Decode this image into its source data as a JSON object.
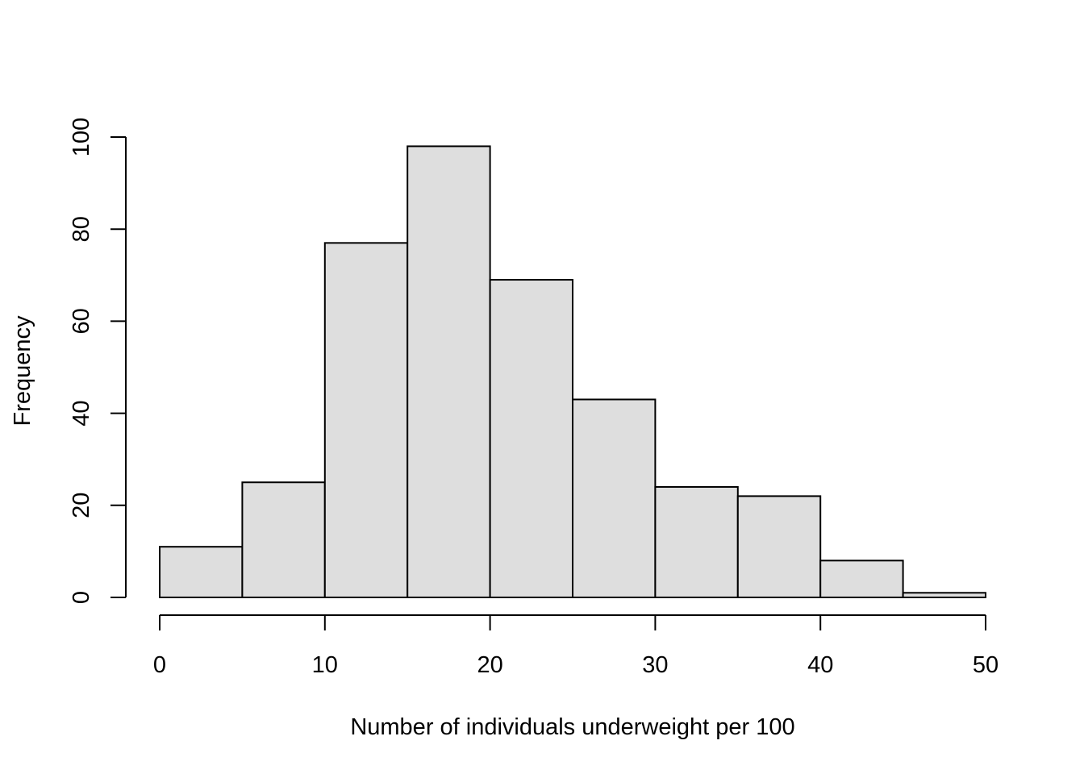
{
  "chart_data": {
    "type": "bar",
    "title": "",
    "xlabel": "Number of individuals underweight per 100",
    "ylabel": "Frequency",
    "bins": [
      {
        "from": 0,
        "to": 5,
        "count": 11
      },
      {
        "from": 5,
        "to": 10,
        "count": 25
      },
      {
        "from": 10,
        "to": 15,
        "count": 77
      },
      {
        "from": 15,
        "to": 20,
        "count": 98
      },
      {
        "from": 20,
        "to": 25,
        "count": 69
      },
      {
        "from": 25,
        "to": 30,
        "count": 43
      },
      {
        "from": 30,
        "to": 35,
        "count": 24
      },
      {
        "from": 35,
        "to": 40,
        "count": 22
      },
      {
        "from": 40,
        "to": 45,
        "count": 8
      },
      {
        "from": 45,
        "to": 50,
        "count": 1
      }
    ],
    "xlim": [
      0,
      50
    ],
    "ylim": [
      0,
      100
    ],
    "xticks": [
      0,
      10,
      20,
      30,
      40,
      50
    ],
    "yticks": [
      0,
      20,
      40,
      60,
      80,
      100
    ],
    "xtick_labels": [
      "0",
      "10",
      "20",
      "30",
      "40",
      "50"
    ],
    "ytick_labels": [
      "0",
      "20",
      "40",
      "60",
      "80",
      "100"
    ],
    "grid": false,
    "legend": "none",
    "colors": {
      "bar_fill": "#dedede",
      "bar_stroke": "#000000",
      "axis": "#000000",
      "background": "#ffffff"
    }
  }
}
